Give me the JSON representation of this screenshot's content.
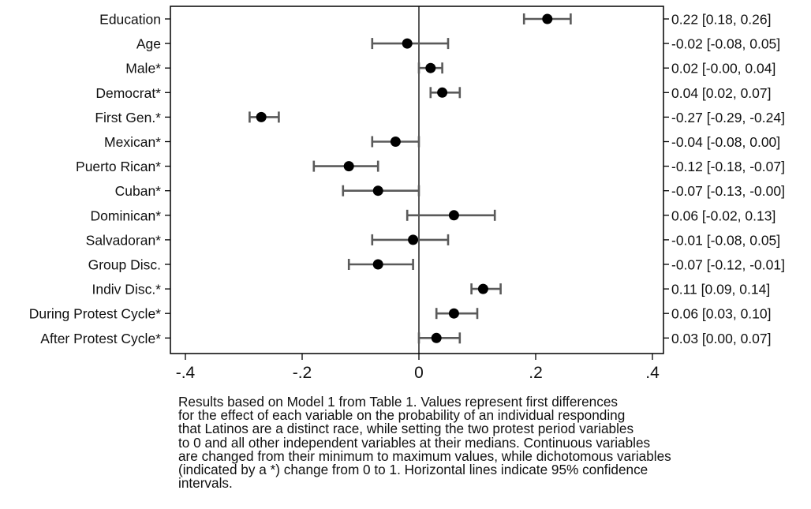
{
  "chart_data": {
    "type": "scatter",
    "subtype": "coefficient-plot-with-95-ci",
    "title": "",
    "xlabel": "",
    "ylabel": "",
    "xlim": [
      -0.4,
      0.4
    ],
    "xticks": [
      -0.4,
      -0.2,
      0,
      0.2,
      0.4
    ],
    "xtick_labels": [
      "-.4",
      "-.2",
      "0",
      ".2",
      ".4"
    ],
    "grid": false,
    "reference_line_x": 0,
    "marker_color": "#000000",
    "ci_color": "#5a5a5a",
    "rows": [
      {
        "label": "Education",
        "estimate": 0.22,
        "ci_low": 0.18,
        "ci_high": 0.26,
        "text": "0.22 [0.18, 0.26]"
      },
      {
        "label": "Age",
        "estimate": -0.02,
        "ci_low": -0.08,
        "ci_high": 0.05,
        "text": "-0.02 [-0.08, 0.05]"
      },
      {
        "label": "Male*",
        "estimate": 0.02,
        "ci_low": -0.0,
        "ci_high": 0.04,
        "text": "0.02 [-0.00, 0.04]"
      },
      {
        "label": "Democrat*",
        "estimate": 0.04,
        "ci_low": 0.02,
        "ci_high": 0.07,
        "text": "0.04 [0.02, 0.07]"
      },
      {
        "label": "First Gen.*",
        "estimate": -0.27,
        "ci_low": -0.29,
        "ci_high": -0.24,
        "text": "-0.27 [-0.29, -0.24]"
      },
      {
        "label": "Mexican*",
        "estimate": -0.04,
        "ci_low": -0.08,
        "ci_high": 0.0,
        "text": "-0.04 [-0.08, 0.00]"
      },
      {
        "label": "Puerto Rican*",
        "estimate": -0.12,
        "ci_low": -0.18,
        "ci_high": -0.07,
        "text": "-0.12 [-0.18, -0.07]"
      },
      {
        "label": "Cuban*",
        "estimate": -0.07,
        "ci_low": -0.13,
        "ci_high": -0.0,
        "text": "-0.07 [-0.13, -0.00]"
      },
      {
        "label": "Dominican*",
        "estimate": 0.06,
        "ci_low": -0.02,
        "ci_high": 0.13,
        "text": "0.06 [-0.02, 0.13]"
      },
      {
        "label": "Salvadoran*",
        "estimate": -0.01,
        "ci_low": -0.08,
        "ci_high": 0.05,
        "text": "-0.01 [-0.08, 0.05]"
      },
      {
        "label": "Group Disc.",
        "estimate": -0.07,
        "ci_low": -0.12,
        "ci_high": -0.01,
        "text": "-0.07 [-0.12, -0.01]"
      },
      {
        "label": "Indiv Disc.*",
        "estimate": 0.11,
        "ci_low": 0.09,
        "ci_high": 0.14,
        "text": "0.11 [0.09, 0.14]"
      },
      {
        "label": "During Protest Cycle*",
        "estimate": 0.06,
        "ci_low": 0.03,
        "ci_high": 0.1,
        "text": "0.06 [0.03, 0.10]"
      },
      {
        "label": "After Protest Cycle*",
        "estimate": 0.03,
        "ci_low": 0.0,
        "ci_high": 0.07,
        "text": "0.03 [0.00, 0.07]"
      }
    ]
  },
  "caption": {
    "lines": [
      "Results based on Model 1 from Table 1. Values represent first differences",
      "for the effect of each variable on the probability of an individual responding",
      "that Latinos are a distinct race, while setting the two protest period variables",
      "to 0 and all other independent variables at their medians. Continuous variables",
      "are changed from their minimum to maximum values, while dichotomous variables",
      "(indicated by a *) change from 0 to 1. Horizontal lines indicate 95% confidence",
      "intervals."
    ]
  }
}
